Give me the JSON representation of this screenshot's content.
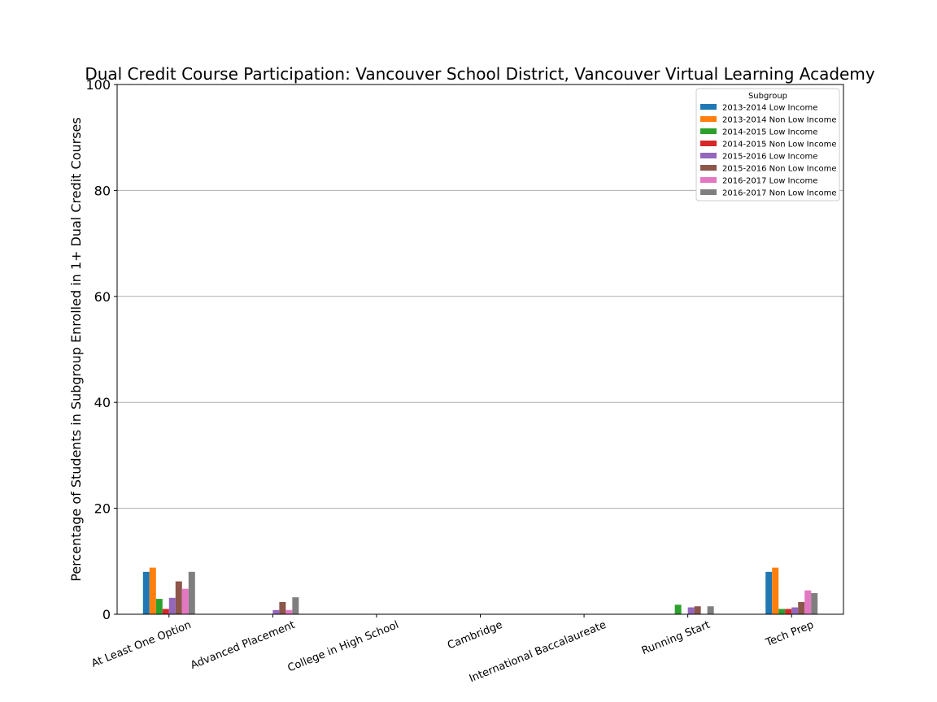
{
  "chart_data": {
    "type": "bar",
    "title": "Dual Credit Course Participation: Vancouver School District, Vancouver Virtual Learning Academy",
    "xlabel": "",
    "ylabel": "Percentage of Students in Subgroup Enrolled in 1+ Dual Credit Courses",
    "ylim": [
      0,
      100
    ],
    "yticks": [
      0,
      20,
      40,
      60,
      80,
      100
    ],
    "grid": true,
    "legend_title": "Subgroup",
    "legend_position": "top-right",
    "categories": [
      "At Least One Option",
      "Advanced Placement",
      "College in High School",
      "Cambridge",
      "International Baccalaureate",
      "Running Start",
      "Tech Prep"
    ],
    "series": [
      {
        "name": "2013-2014 Low Income",
        "color": "#1f77b4",
        "values": [
          8.0,
          0,
          0,
          0,
          0,
          0,
          8.0
        ]
      },
      {
        "name": "2013-2014 Non Low Income",
        "color": "#ff7f0e",
        "values": [
          8.8,
          0,
          0,
          0,
          0,
          0,
          8.8
        ]
      },
      {
        "name": "2014-2015 Low Income",
        "color": "#2ca02c",
        "values": [
          2.9,
          0,
          0,
          0,
          0,
          1.8,
          1.0
        ]
      },
      {
        "name": "2014-2015 Non Low Income",
        "color": "#d62728",
        "values": [
          1.0,
          0,
          0,
          0,
          0,
          0,
          1.0
        ]
      },
      {
        "name": "2015-2016 Low Income",
        "color": "#9467bd",
        "values": [
          3.1,
          0.8,
          0,
          0,
          0,
          1.3,
          1.3
        ]
      },
      {
        "name": "2015-2016 Non Low Income",
        "color": "#8c564b",
        "values": [
          6.2,
          2.3,
          0,
          0,
          0,
          1.5,
          2.3
        ]
      },
      {
        "name": "2016-2017 Low Income",
        "color": "#e377c2",
        "values": [
          4.8,
          0.8,
          0,
          0,
          0,
          0,
          4.5
        ]
      },
      {
        "name": "2016-2017 Non Low Income",
        "color": "#7f7f7f",
        "values": [
          8.0,
          3.2,
          0,
          0,
          0,
          1.5,
          4.0
        ]
      }
    ]
  }
}
